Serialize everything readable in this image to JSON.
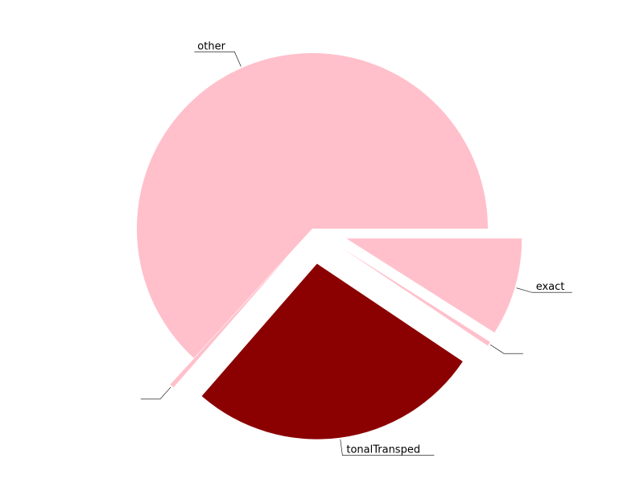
{
  "chart_data": {
    "type": "pie",
    "title": "",
    "slices": [
      {
        "label": "exact",
        "value": 9,
        "color": "#ffc0cb",
        "exploded": true
      },
      {
        "label": "",
        "value": 0.4,
        "color": "#ffc0cb",
        "exploded": true
      },
      {
        "label": "tonalTransped",
        "value": 27,
        "color": "#8b0000",
        "exploded": true
      },
      {
        "label": "",
        "value": 0.4,
        "color": "#ffc0cb",
        "exploded": true
      },
      {
        "label": "other",
        "value": 63.2,
        "color": "#ffc0cb",
        "exploded": false
      }
    ],
    "legend": "none"
  }
}
